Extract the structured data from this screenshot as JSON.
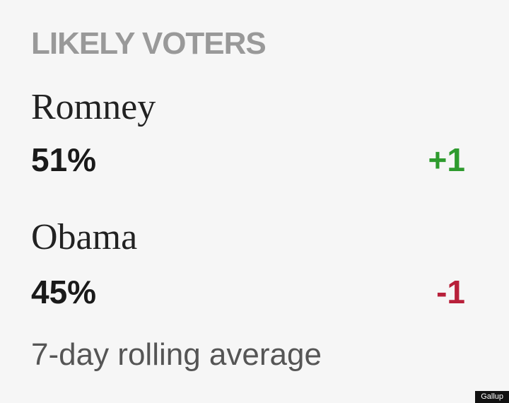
{
  "header": {
    "title": "LIKELY VOTERS"
  },
  "candidates": [
    {
      "name": "Romney",
      "percent": "51%",
      "change": "+1",
      "change_color": "#2e9b2e"
    },
    {
      "name": "Obama",
      "percent": "45%",
      "change": "-1",
      "change_color": "#b8203a"
    }
  ],
  "footnote": "7-day rolling average",
  "credit": "Gallup"
}
